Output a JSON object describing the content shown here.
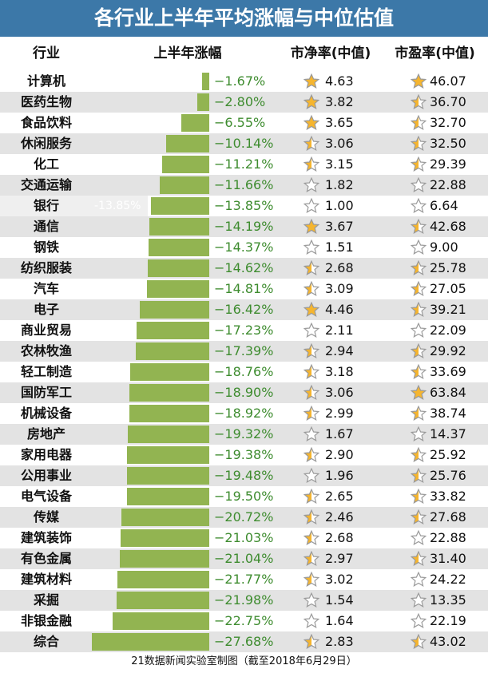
{
  "title": "各行业上半年平均涨幅与中位估值",
  "headers": {
    "industry": "行业",
    "change": "上半年涨幅",
    "pb": "市净率(中值)",
    "pe": "市盈率(中值)"
  },
  "footer": "21数据新闻实验室制图（截至2018年6月29日）",
  "colors": {
    "title_bg": "#3c78a8",
    "bar": "#92b451",
    "change_text": "#3e8c2f",
    "star_gold": "#f5b52f"
  },
  "chart_data": {
    "type": "bar",
    "categories": [
      "计算机",
      "医药生物",
      "食品饮料",
      "休闲服务",
      "化工",
      "交通运输",
      "银行",
      "通信",
      "钢铁",
      "纺织服装",
      "汽车",
      "电子",
      "商业贸易",
      "农林牧渔",
      "轻工制造",
      "国防军工",
      "机械设备",
      "房地产",
      "家用电器",
      "公用事业",
      "电气设备",
      "传媒",
      "建筑装饰",
      "有色金属",
      "建筑材料",
      "采掘",
      "非银金融",
      "综合"
    ],
    "series": [
      {
        "name": "上半年涨幅",
        "values": [
          -1.67,
          -2.8,
          -6.55,
          -10.14,
          -11.21,
          -11.66,
          -13.85,
          -14.19,
          -14.37,
          -14.62,
          -14.81,
          -16.42,
          -17.23,
          -17.39,
          -18.76,
          -18.9,
          -18.92,
          -19.32,
          -19.38,
          -19.48,
          -19.5,
          -20.72,
          -21.03,
          -21.04,
          -21.77,
          -21.98,
          -22.75,
          -27.68
        ]
      },
      {
        "name": "市净率(中值)",
        "values": [
          4.63,
          3.82,
          3.65,
          3.06,
          3.15,
          1.82,
          1.0,
          3.67,
          1.51,
          2.68,
          3.09,
          4.46,
          2.11,
          2.94,
          3.18,
          3.06,
          2.99,
          1.67,
          2.9,
          1.96,
          2.65,
          2.46,
          2.68,
          2.97,
          3.02,
          1.54,
          1.64,
          2.83
        ]
      },
      {
        "name": "市盈率(中值)",
        "values": [
          46.07,
          36.7,
          32.7,
          32.5,
          29.39,
          22.88,
          6.64,
          42.68,
          9.0,
          25.78,
          27.05,
          39.21,
          22.09,
          29.92,
          33.69,
          63.84,
          38.74,
          14.37,
          25.92,
          25.76,
          33.82,
          27.68,
          22.88,
          31.4,
          24.22,
          13.35,
          22.19,
          43.02
        ]
      }
    ],
    "change_labels": [
      "−1.67%",
      "−2.80%",
      "−6.55%",
      "−10.14%",
      "−11.21%",
      "−11.66%",
      "−13.85%",
      "−14.19%",
      "−14.37%",
      "−14.62%",
      "−14.81%",
      "−16.42%",
      "−17.23%",
      "−17.39%",
      "−18.76%",
      "−18.90%",
      "−18.92%",
      "−19.32%",
      "−19.38%",
      "−19.48%",
      "−19.50%",
      "−20.72%",
      "−21.03%",
      "−21.04%",
      "−21.77%",
      "−21.98%",
      "−22.75%",
      "−27.68%"
    ],
    "pb_labels": [
      "4.63",
      "3.82",
      "3.65",
      "3.06",
      "3.15",
      "1.82",
      "1.00",
      "3.67",
      "1.51",
      "2.68",
      "3.09",
      "4.46",
      "2.11",
      "2.94",
      "3.18",
      "3.06",
      "2.99",
      "1.67",
      "2.90",
      "1.96",
      "2.65",
      "2.46",
      "2.68",
      "2.97",
      "3.02",
      "1.54",
      "1.64",
      "2.83"
    ],
    "pe_labels": [
      "46.07",
      "36.70",
      "32.70",
      "32.50",
      "29.39",
      "22.88",
      "6.64",
      "42.68",
      "9.00",
      "25.78",
      "27.05",
      "39.21",
      "22.09",
      "29.92",
      "33.69",
      "63.84",
      "38.74",
      "14.37",
      "25.92",
      "25.76",
      "33.82",
      "27.68",
      "22.88",
      "31.40",
      "24.22",
      "13.35",
      "22.19",
      "43.02"
    ],
    "pb_star_fill": [
      1,
      1,
      1,
      0.5,
      0.5,
      0,
      0,
      1,
      0,
      0.5,
      0.5,
      1,
      0,
      0.5,
      0.5,
      0.5,
      0.5,
      0,
      0.5,
      0,
      0.5,
      0.5,
      0.5,
      0.5,
      0.5,
      0,
      0,
      0.5
    ],
    "pe_star_fill": [
      1,
      0.5,
      0.5,
      0.5,
      0.5,
      0,
      0,
      0.5,
      0,
      0.5,
      0.5,
      0.5,
      0,
      0.5,
      0.5,
      1,
      0.5,
      0,
      0.5,
      0.5,
      0.5,
      0.5,
      0,
      0.5,
      0,
      0,
      0,
      0.5
    ],
    "highlight_ghost_label": "-13.85%"
  }
}
